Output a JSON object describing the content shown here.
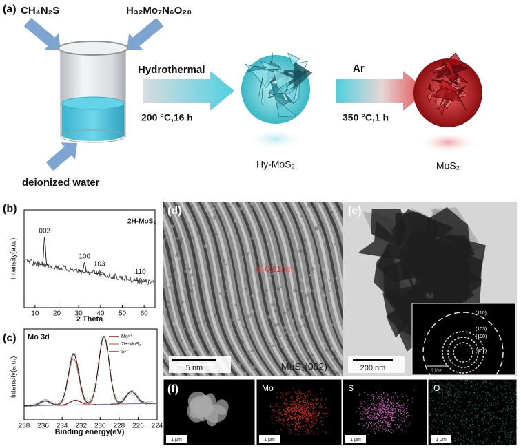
{
  "panel_a": {
    "label": "(a)",
    "reagents": [
      "CH₄N₂S",
      "H₃₂Mo₇N₆O₂₈"
    ],
    "solvent": "deionized water",
    "step1": {
      "process": "Hydrothermal",
      "condition": "200 °C,16 h",
      "product": "Hy-MoS₂"
    },
    "step2": {
      "process": "Ar",
      "condition": "350 °C,1 h",
      "product": "MoS₂"
    }
  },
  "panel_b": {
    "label": "(b)",
    "type": "line",
    "title": "2H-MoS₂",
    "x_label": "2 Theta",
    "y_label": "Intensity(a.u.)",
    "xlim": [
      5,
      65
    ],
    "ylim": [
      0,
      100
    ],
    "xticks": [
      10,
      20,
      30,
      40,
      50,
      60
    ],
    "peaks": [
      {
        "label": "002",
        "x": 14.4,
        "height": 72
      },
      {
        "label": "100",
        "x": 32.7,
        "height": 46
      },
      {
        "label": "103",
        "x": 39.5,
        "height": 38
      },
      {
        "label": "110",
        "x": 58.3,
        "height": 30
      }
    ]
  },
  "panel_c": {
    "label": "(c)",
    "type": "line",
    "title": "Mo 3d",
    "x_label": "Binding energy(eV)",
    "y_label": "Intensity(a.u.)",
    "xlim": [
      238,
      224
    ],
    "ylim": [
      0,
      100
    ],
    "xticks": [
      238,
      236,
      234,
      232,
      230,
      228,
      226,
      224
    ],
    "series": [
      {
        "name": "Mo⁶⁺",
        "color": "#8b1a1a",
        "peaks": [
          {
            "x": 235.8,
            "height": 6
          },
          {
            "x": 232.6,
            "height": 6
          }
        ]
      },
      {
        "name": "2H-MoS₂",
        "color": "#e8806a",
        "peaks": [
          {
            "x": 232.8,
            "height": 60
          },
          {
            "x": 229.6,
            "height": 88
          }
        ]
      },
      {
        "name": "S²⁻",
        "color": "#7a2a8a",
        "peaks": [
          {
            "x": 226.7,
            "height": 16
          }
        ]
      }
    ]
  },
  "panel_d": {
    "label": "(d)",
    "spacing": "d=0.61nm",
    "scale_bar": "5 nm",
    "plane": "MoS₂(002)"
  },
  "panel_e": {
    "label": "(e)",
    "scale_bar": "200 nm",
    "rings": [
      "(110)",
      "(103)",
      "(100)",
      "(002)"
    ],
    "inset_scale": "5 1/nm"
  },
  "panel_f": {
    "label": "(f)",
    "maps": [
      "Mo",
      "S",
      "O"
    ],
    "scale_bar": "1 μm"
  }
}
